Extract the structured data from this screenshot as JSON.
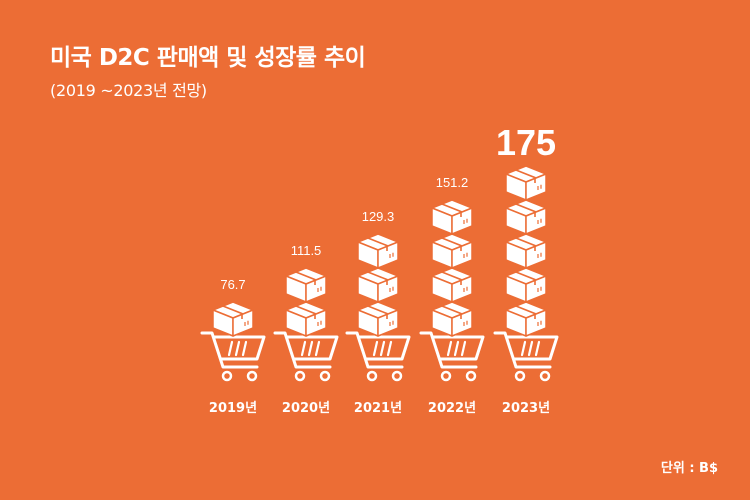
{
  "title": "미국 D2C 판매액 및 성장률 추이",
  "subtitle": "(2019 ~2023년 전망)",
  "unit_label": "단위 : B$",
  "colors": {
    "background": "#EC6D35",
    "foreground": "#ffffff"
  },
  "icons": {
    "stack": "box-icon",
    "base": "shopping-cart-icon"
  },
  "chart_data": {
    "type": "bar",
    "categories": [
      "2019년",
      "2020년",
      "2021년",
      "2022년",
      "2023년"
    ],
    "values": [
      76.7,
      111.5,
      129.3,
      151.2,
      175
    ],
    "value_labels": [
      "76.7",
      "111.5",
      "129.3",
      "151.2",
      "175"
    ],
    "box_counts": [
      1,
      2,
      3,
      4,
      5
    ],
    "highlight_index": 4,
    "title": "미국 D2C 판매액 및 성장률 추이",
    "subtitle": "(2019 ~2023년 전망)",
    "unit": "단위 : B$",
    "grid": false,
    "legend": "none"
  }
}
